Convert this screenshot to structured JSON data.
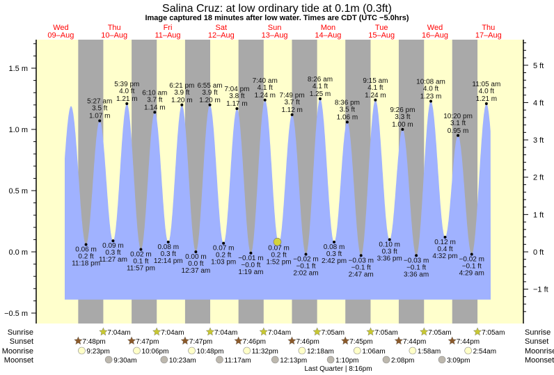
{
  "chart_data": {
    "type": "area",
    "title": "Salina Cruz: at low  ordinary tide at 0.1m (0.3ft)",
    "subtitle": "Image captured 18 minutes after low water. Times are CDT (UTC −5.0hrs)",
    "days": [
      {
        "dow": "Wed",
        "date": "09–Aug"
      },
      {
        "dow": "Thu",
        "date": "10–Aug"
      },
      {
        "dow": "Fri",
        "date": "11–Aug"
      },
      {
        "dow": "Sat",
        "date": "12–Aug"
      },
      {
        "dow": "Sun",
        "date": "13–Aug"
      },
      {
        "dow": "Mon",
        "date": "14–Aug"
      },
      {
        "dow": "Tue",
        "date": "15–Aug"
      },
      {
        "dow": "Wed",
        "date": "16–Aug"
      },
      {
        "dow": "Thu",
        "date": "17–Aug"
      }
    ],
    "left_axis": {
      "unit": "m",
      "ylim": [
        -0.55,
        1.75
      ],
      "ticks": [
        "1.5 m",
        "1.0 m",
        "0.5 m",
        "0.0 m",
        "−0.5 m"
      ],
      "tick_values": [
        1.5,
        1.0,
        0.5,
        0.0,
        -0.5
      ]
    },
    "right_axis": {
      "unit": "ft",
      "ticks": [
        "5 ft",
        "4 ft",
        "3 ft",
        "2 ft",
        "1 ft",
        "0 ft",
        "−1 ft"
      ],
      "tick_values": [
        5,
        4,
        3,
        2,
        1,
        0,
        -1
      ]
    },
    "tides": [
      {
        "day": 9,
        "time": "4:35 pm",
        "type": "high",
        "m": "1.19",
        "labeled": false
      },
      {
        "day": 9,
        "time": "11:18 pm",
        "type": "low",
        "m": "0.06 m",
        "ft": "0.2 ft",
        "label_time": "11:18 pm"
      },
      {
        "day": 10,
        "time": "5:27 am",
        "type": "high",
        "m": "1.07 m",
        "ft": "3.5 ft",
        "label_time": "5:27 am"
      },
      {
        "day": 10,
        "time": "11:27 am",
        "type": "low",
        "m": "0.09 m",
        "ft": "0.3 ft",
        "label_time": "11:27 am"
      },
      {
        "day": 10,
        "time": "5:39 pm",
        "type": "high",
        "m": "1.21 m",
        "ft": "4.0 ft",
        "label_time": "5:39 pm"
      },
      {
        "day": 10,
        "time": "11:57 pm",
        "type": "low",
        "m": "0.02 m",
        "ft": "0.1 ft",
        "label_time": "11:57 pm"
      },
      {
        "day": 11,
        "time": "6:10 am",
        "type": "high",
        "m": "1.14 m",
        "ft": "3.7 ft",
        "label_time": "6:10 am"
      },
      {
        "day": 11,
        "time": "12:14 pm",
        "type": "low",
        "m": "0.08 m",
        "ft": "0.3 ft",
        "label_time": "12:14 pm"
      },
      {
        "day": 11,
        "time": "6:21 pm",
        "type": "high",
        "m": "1.20 m",
        "ft": "3.9 ft",
        "label_time": "6:21 pm"
      },
      {
        "day": 12,
        "time": "12:37 am",
        "type": "low",
        "m": "0.00 m",
        "ft": "0.0 ft",
        "label_time": "12:37 am"
      },
      {
        "day": 12,
        "time": "6:55 am",
        "type": "high",
        "m": "1.20 m",
        "ft": "3.9 ft",
        "label_time": "6:55 am"
      },
      {
        "day": 12,
        "time": "1:03 pm",
        "type": "low",
        "m": "0.07 m",
        "ft": "0.2 ft",
        "label_time": "1:03 pm"
      },
      {
        "day": 12,
        "time": "7:04 pm",
        "type": "high",
        "m": "1.17 m",
        "ft": "3.8 ft",
        "label_time": "7:04 pm"
      },
      {
        "day": 13,
        "time": "1:19 am",
        "type": "low",
        "m": "−0.01 m",
        "ft": "−0.0 ft",
        "label_time": "1:19 am"
      },
      {
        "day": 13,
        "time": "7:40 am",
        "type": "high",
        "m": "1.24 m",
        "ft": "4.1 ft",
        "label_time": "7:40 am"
      },
      {
        "day": 13,
        "time": "1:52 pm",
        "type": "low",
        "m": "0.07 m",
        "ft": "0.2 ft",
        "label_time": "1:52 pm"
      },
      {
        "day": 13,
        "time": "7:49 pm",
        "type": "high",
        "m": "1.12 m",
        "ft": "3.7 ft",
        "label_time": "7:49 pm"
      },
      {
        "day": 14,
        "time": "2:02 am",
        "type": "low",
        "m": "−0.02 m",
        "ft": "−0.1 ft",
        "label_time": "2:02 am"
      },
      {
        "day": 14,
        "time": "8:26 am",
        "type": "high",
        "m": "1.25 m",
        "ft": "4.1 ft",
        "label_time": "8:26 am"
      },
      {
        "day": 14,
        "time": "2:42 pm",
        "type": "low",
        "m": "0.08 m",
        "ft": "0.3 ft",
        "label_time": "2:42 pm"
      },
      {
        "day": 14,
        "time": "8:36 pm",
        "type": "high",
        "m": "1.06 m",
        "ft": "3.5 ft",
        "label_time": "8:36 pm"
      },
      {
        "day": 15,
        "time": "2:47 am",
        "type": "low",
        "m": "−0.03 m",
        "ft": "−0.1 ft",
        "label_time": "2:47 am"
      },
      {
        "day": 15,
        "time": "9:15 am",
        "type": "high",
        "m": "1.24 m",
        "ft": "4.1 ft",
        "label_time": "9:15 am"
      },
      {
        "day": 15,
        "time": "3:36 pm",
        "type": "low",
        "m": "0.10 m",
        "ft": "0.3 ft",
        "label_time": "3:36 pm"
      },
      {
        "day": 15,
        "time": "9:26 pm",
        "type": "high",
        "m": "1.00 m",
        "ft": "3.3 ft",
        "label_time": "9:26 pm"
      },
      {
        "day": 16,
        "time": "3:36 am",
        "type": "low",
        "m": "−0.03 m",
        "ft": "−0.1 ft",
        "label_time": "3:36 am"
      },
      {
        "day": 16,
        "time": "10:08 am",
        "type": "high",
        "m": "1.23 m",
        "ft": "4.0 ft",
        "label_time": "10:08 am"
      },
      {
        "day": 16,
        "time": "4:32 pm",
        "type": "low",
        "m": "0.12 m",
        "ft": "0.4 ft",
        "label_time": "4:32 pm"
      },
      {
        "day": 16,
        "time": "10:20 pm",
        "type": "high",
        "m": "0.95 m",
        "ft": "3.1 ft",
        "label_time": "10:20 pm"
      },
      {
        "day": 17,
        "time": "4:29 am",
        "type": "low",
        "m": "−0.02 m",
        "ft": "−0.1 ft",
        "label_time": "4:29 am"
      },
      {
        "day": 17,
        "time": "11:05 am",
        "type": "high",
        "m": "1.21 m",
        "ft": "4.0 ft",
        "label_time": "11:05 am"
      }
    ],
    "current": {
      "day": 13,
      "time": "2:10 pm",
      "m": 0.07
    },
    "colors": {
      "day": "#ffffcc",
      "night": "#a9a9a9",
      "water": "#a0b2ff",
      "day_label": "#ff0000",
      "current_marker": "#d4d43a",
      "sunrise": "#c8c832",
      "sunset": "#8b5a2b",
      "moonrise": "#ffffc8",
      "moonset": "#bdb8ae"
    },
    "rows": {
      "sunrise": {
        "label": "Sunrise",
        "icon": "star-icon",
        "items": [
          {
            "day": 10,
            "time": "7:04am"
          },
          {
            "day": 11,
            "time": "7:04am"
          },
          {
            "day": 12,
            "time": "7:04am"
          },
          {
            "day": 13,
            "time": "7:04am"
          },
          {
            "day": 14,
            "time": "7:05am"
          },
          {
            "day": 15,
            "time": "7:05am"
          },
          {
            "day": 16,
            "time": "7:05am"
          },
          {
            "day": 17,
            "time": "7:05am"
          }
        ]
      },
      "sunset": {
        "label": "Sunset",
        "icon": "star-icon",
        "items": [
          {
            "day": 9,
            "time": "7:48pm"
          },
          {
            "day": 10,
            "time": "7:47pm"
          },
          {
            "day": 11,
            "time": "7:47pm"
          },
          {
            "day": 12,
            "time": "7:46pm"
          },
          {
            "day": 13,
            "time": "7:46pm"
          },
          {
            "day": 14,
            "time": "7:45pm"
          },
          {
            "day": 15,
            "time": "7:44pm"
          },
          {
            "day": 16,
            "time": "7:44pm"
          }
        ]
      },
      "moonrise": {
        "label": "Moonrise",
        "icon": "moon-icon",
        "items": [
          {
            "day": 9,
            "time": "9:23pm"
          },
          {
            "day": 10,
            "time": "10:06pm"
          },
          {
            "day": 11,
            "time": "10:48pm"
          },
          {
            "day": 12,
            "time": "11:32pm"
          },
          {
            "day": 14,
            "time": "12:18am"
          },
          {
            "day": 15,
            "time": "1:06am"
          },
          {
            "day": 16,
            "time": "1:58am"
          },
          {
            "day": 17,
            "time": "2:54am"
          }
        ]
      },
      "moonset": {
        "label": "Moonset",
        "icon": "moon-icon",
        "items": [
          {
            "day": 10,
            "time": "9:30am"
          },
          {
            "day": 11,
            "time": "10:23am"
          },
          {
            "day": 12,
            "time": "11:17am"
          },
          {
            "day": 13,
            "time": "12:13pm"
          },
          {
            "day": 14,
            "time": "1:10pm"
          },
          {
            "day": 15,
            "time": "2:08pm"
          },
          {
            "day": 16,
            "time": "3:09pm"
          }
        ]
      }
    },
    "moon_phase": "Last Quarter | 8:16pm"
  }
}
